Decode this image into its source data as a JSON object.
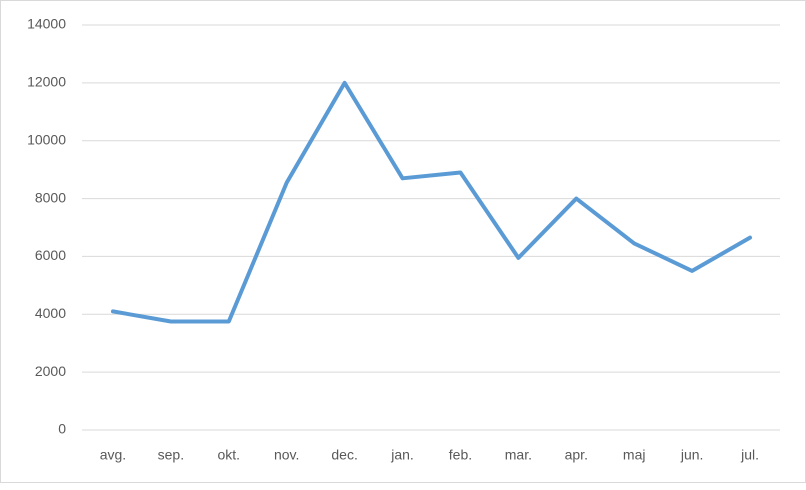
{
  "chart_data": {
    "type": "line",
    "categories": [
      "avg.",
      "sep.",
      "okt.",
      "nov.",
      "dec.",
      "jan.",
      "feb.",
      "mar.",
      "apr.",
      "maj",
      "jun.",
      "jul."
    ],
    "series": [
      {
        "color": "#5b9bd5",
        "values": [
          4100,
          3750,
          3750,
          8550,
          12000,
          8700,
          8900,
          5950,
          8000,
          6450,
          5500,
          6650
        ]
      }
    ],
    "ylim": [
      0,
      14000
    ],
    "yticks": [
      0,
      2000,
      4000,
      6000,
      8000,
      10000,
      12000,
      14000
    ],
    "grid": true
  }
}
